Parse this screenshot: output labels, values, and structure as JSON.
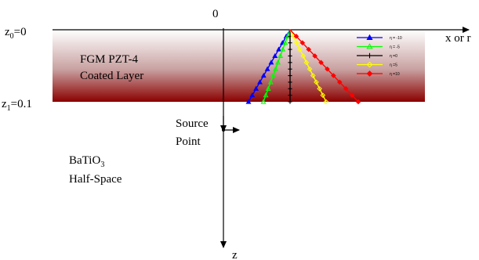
{
  "diagram": {
    "origin_label": "0",
    "z0_label": "z",
    "z0_sub": "0",
    "z0_eq": "=0",
    "z1_label": "z",
    "z1_sub": "1",
    "z1_eq": "=0.1",
    "layer_line1": "FGM PZT-4",
    "layer_line2": "Coated Layer",
    "source_line1": "Source",
    "source_line2": "Point",
    "half_space_line1_main": "BaTiO",
    "half_space_line1_sub": "3",
    "half_space_line2": "Half-Space",
    "x_axis_label": "x or r",
    "z_axis_label": "z"
  },
  "legend": [
    {
      "label": "η = -10",
      "color": "#0000ff",
      "marker": "triangle-filled"
    },
    {
      "label": "η = -5",
      "color": "#00ff00",
      "marker": "triangle-open"
    },
    {
      "label": "η =0",
      "color": "#000000",
      "marker": "plus"
    },
    {
      "label": "η =5",
      "color": "#ffff00",
      "marker": "diamond-open"
    },
    {
      "label": "η =10",
      "color": "#ff0000",
      "marker": "diamond-filled"
    }
  ],
  "colors": {
    "layer_top": "#ffffff",
    "layer_bottom": "#8b0000"
  }
}
